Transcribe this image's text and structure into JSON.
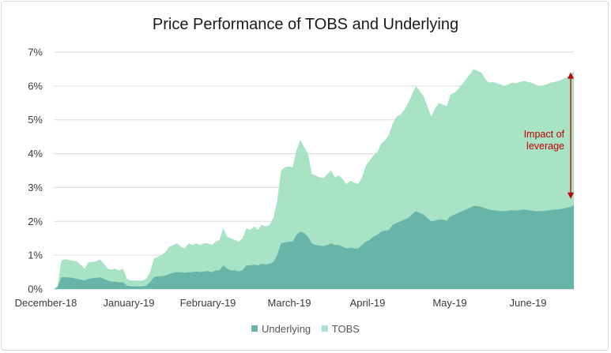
{
  "chart_data": {
    "type": "area",
    "title": "Price Performance of TOBS and Underlying",
    "xlabel": "",
    "ylabel": "",
    "x_tick_labels": [
      "December-18",
      "January-19",
      "February-19",
      "March-19",
      "April-19",
      "May-19",
      "June-19"
    ],
    "y_tick_labels": [
      "0%",
      "1%",
      "2%",
      "3%",
      "4%",
      "5%",
      "6%",
      "7%"
    ],
    "ylim": [
      0,
      7
    ],
    "grid": true,
    "legend_position": "bottom",
    "colors": {
      "underlying": "#67b5a8",
      "tobs": "#a7e3c4",
      "annotation": "#c00000",
      "grid": "#d9d9d9"
    },
    "series": [
      {
        "name": "TOBS",
        "values": [
          0.0,
          0.1,
          0.85,
          0.88,
          0.86,
          0.83,
          0.82,
          0.72,
          0.6,
          0.8,
          0.8,
          0.82,
          0.88,
          0.75,
          0.6,
          0.58,
          0.6,
          0.55,
          0.6,
          0.3,
          0.25,
          0.25,
          0.25,
          0.25,
          0.3,
          0.5,
          0.9,
          0.95,
          1.0,
          1.1,
          1.25,
          1.3,
          1.35,
          1.25,
          1.2,
          1.35,
          1.3,
          1.35,
          1.3,
          1.35,
          1.35,
          1.3,
          1.4,
          1.45,
          1.8,
          1.55,
          1.5,
          1.45,
          1.4,
          1.5,
          1.8,
          1.75,
          1.85,
          1.75,
          1.9,
          1.85,
          1.9,
          2.1,
          2.6,
          3.5,
          3.6,
          3.62,
          3.6,
          4.1,
          4.4,
          4.2,
          4.0,
          3.4,
          3.35,
          3.3,
          3.28,
          3.4,
          3.5,
          3.3,
          3.35,
          3.25,
          3.1,
          3.2,
          3.15,
          3.1,
          3.3,
          3.65,
          3.8,
          3.95,
          4.05,
          4.3,
          4.4,
          4.55,
          4.9,
          5.1,
          5.15,
          5.3,
          5.5,
          5.75,
          6.0,
          5.85,
          5.7,
          5.4,
          5.1,
          5.35,
          5.5,
          5.45,
          5.4,
          5.75,
          5.8,
          5.9,
          6.05,
          6.2,
          6.35,
          6.5,
          6.45,
          6.4,
          6.2,
          6.1,
          6.12,
          6.08,
          6.05,
          6.0,
          6.05,
          6.1,
          6.08,
          6.12,
          6.15,
          6.12,
          6.1,
          6.05,
          6.0,
          6.02,
          6.05,
          6.1,
          6.12,
          6.15,
          6.2,
          6.25,
          6.3,
          6.45
        ]
      },
      {
        "name": "Underlying",
        "values": [
          0.0,
          0.05,
          0.35,
          0.35,
          0.34,
          0.33,
          0.3,
          0.28,
          0.25,
          0.3,
          0.32,
          0.33,
          0.35,
          0.3,
          0.25,
          0.22,
          0.22,
          0.2,
          0.2,
          0.1,
          0.08,
          0.08,
          0.08,
          0.08,
          0.1,
          0.2,
          0.35,
          0.38,
          0.38,
          0.4,
          0.45,
          0.48,
          0.5,
          0.5,
          0.48,
          0.5,
          0.5,
          0.52,
          0.5,
          0.52,
          0.53,
          0.5,
          0.55,
          0.55,
          0.7,
          0.6,
          0.55,
          0.55,
          0.52,
          0.55,
          0.7,
          0.7,
          0.72,
          0.7,
          0.75,
          0.72,
          0.75,
          0.8,
          1.0,
          1.35,
          1.38,
          1.4,
          1.4,
          1.6,
          1.7,
          1.65,
          1.55,
          1.35,
          1.3,
          1.28,
          1.27,
          1.3,
          1.35,
          1.3,
          1.3,
          1.25,
          1.2,
          1.22,
          1.2,
          1.2,
          1.3,
          1.4,
          1.45,
          1.55,
          1.6,
          1.7,
          1.72,
          1.75,
          1.9,
          1.95,
          2.0,
          2.05,
          2.1,
          2.2,
          2.3,
          2.25,
          2.2,
          2.1,
          2.0,
          2.02,
          2.05,
          2.05,
          2.02,
          2.15,
          2.2,
          2.25,
          2.3,
          2.35,
          2.4,
          2.45,
          2.45,
          2.43,
          2.38,
          2.35,
          2.33,
          2.32,
          2.3,
          2.3,
          2.32,
          2.33,
          2.32,
          2.33,
          2.35,
          2.33,
          2.32,
          2.3,
          2.3,
          2.3,
          2.32,
          2.33,
          2.35,
          2.35,
          2.37,
          2.4,
          2.42,
          2.48
        ]
      }
    ],
    "annotation": {
      "text_line1": "Impact of",
      "text_line2": "leverage"
    }
  },
  "legend": {
    "items": [
      {
        "label": "Underlying",
        "color": "#67b5a8"
      },
      {
        "label": "TOBS",
        "color": "#a7e3c4"
      }
    ]
  }
}
